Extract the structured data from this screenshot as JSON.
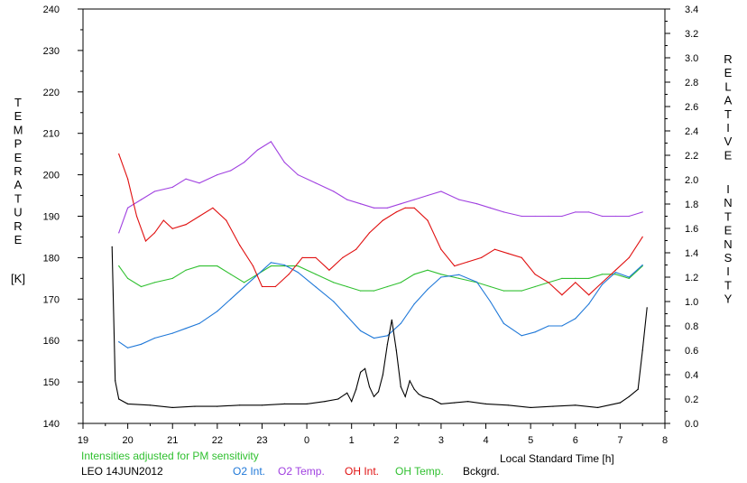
{
  "chart_data": {
    "type": "line",
    "title": "",
    "xlabel": "Local Standard Time [h]",
    "ylabel_left": "TEMPERATURE [K]",
    "ylabel_right": "RELATIVE INTENSITY",
    "xlim": [
      19,
      8
    ],
    "ylim_left": [
      140,
      240
    ],
    "ylim_right": [
      0.0,
      3.4
    ],
    "x_ticks": [
      "19",
      "20",
      "21",
      "22",
      "23",
      "0",
      "1",
      "2",
      "3",
      "4",
      "5",
      "6",
      "7",
      "8"
    ],
    "y_ticks_left": [
      "140",
      "150",
      "160",
      "170",
      "180",
      "190",
      "200",
      "210",
      "220",
      "230",
      "240"
    ],
    "y_ticks_right": [
      "0.0",
      "0.2",
      "0.4",
      "0.6",
      "0.8",
      "1.0",
      "1.2",
      "1.4",
      "1.6",
      "1.8",
      "2.0",
      "2.2",
      "2.4",
      "2.6",
      "2.8",
      "3.0",
      "3.2",
      "3.4"
    ],
    "grid": false,
    "note": "Intensities adjusted for PM sensitivity",
    "station": "LEO 14JUN2012",
    "series": [
      {
        "name": "O2 Int.",
        "color": "#1f78d8",
        "axis": "right",
        "x": [
          19.8,
          20.0,
          20.3,
          20.6,
          21.0,
          21.3,
          21.6,
          22.0,
          22.3,
          22.6,
          22.9,
          23.2,
          23.5,
          23.8,
          24.2,
          24.6,
          24.9,
          25.2,
          25.5,
          25.8,
          26.1,
          26.4,
          26.7,
          27.0,
          27.4,
          27.8,
          28.1,
          28.4,
          28.8,
          29.1,
          29.4,
          29.7,
          30.0,
          30.3,
          30.6,
          30.9,
          31.2,
          31.5
        ],
        "y": [
          0.67,
          0.62,
          0.65,
          0.7,
          0.74,
          0.78,
          0.82,
          0.92,
          1.02,
          1.12,
          1.22,
          1.32,
          1.3,
          1.24,
          1.12,
          1.0,
          0.88,
          0.76,
          0.7,
          0.72,
          0.82,
          0.98,
          1.1,
          1.2,
          1.22,
          1.16,
          1.0,
          0.82,
          0.72,
          0.75,
          0.8,
          0.8,
          0.86,
          0.98,
          1.14,
          1.24,
          1.2,
          1.3
        ]
      },
      {
        "name": "O2 Temp.",
        "color": "#a040e0",
        "axis": "left",
        "x": [
          19.8,
          20.0,
          20.3,
          20.6,
          21.0,
          21.3,
          21.6,
          22.0,
          22.3,
          22.6,
          22.9,
          23.2,
          23.5,
          23.8,
          24.2,
          24.6,
          24.9,
          25.2,
          25.5,
          25.8,
          26.1,
          26.4,
          26.7,
          27.0,
          27.4,
          27.8,
          28.1,
          28.4,
          28.8,
          29.1,
          29.4,
          29.7,
          30.0,
          30.3,
          30.6,
          30.9,
          31.2,
          31.5
        ],
        "y": [
          186,
          192,
          194,
          196,
          197,
          199,
          198,
          200,
          201,
          203,
          206,
          208,
          203,
          200,
          198,
          196,
          194,
          193,
          192,
          192,
          193,
          194,
          195,
          196,
          194,
          193,
          192,
          191,
          190,
          190,
          190,
          190,
          191,
          191,
          190,
          190,
          190,
          191
        ]
      },
      {
        "name": "OH Int.",
        "color": "#e01010",
        "axis": "left",
        "x": [
          19.8,
          20.0,
          20.2,
          20.4,
          20.6,
          20.8,
          21.0,
          21.3,
          21.6,
          21.9,
          22.2,
          22.5,
          22.8,
          23.0,
          23.3,
          23.6,
          23.9,
          24.2,
          24.5,
          24.8,
          25.1,
          25.4,
          25.7,
          26.0,
          26.2,
          26.4,
          26.7,
          27.0,
          27.3,
          27.6,
          27.9,
          28.2,
          28.5,
          28.8,
          29.1,
          29.4,
          29.7,
          30.0,
          30.3,
          30.6,
          30.9,
          31.2,
          31.5
        ],
        "y": [
          205,
          199,
          190,
          184,
          186,
          189,
          187,
          188,
          190,
          192,
          189,
          183,
          178,
          173,
          173,
          176,
          180,
          180,
          177,
          180,
          182,
          186,
          189,
          191,
          192,
          192,
          189,
          182,
          178,
          179,
          180,
          182,
          181,
          180,
          176,
          174,
          171,
          174,
          171,
          174,
          177,
          180,
          185
        ]
      },
      {
        "name": "OH Temp.",
        "color": "#30c030",
        "axis": "left",
        "x": [
          19.8,
          20.0,
          20.3,
          20.6,
          21.0,
          21.3,
          21.6,
          22.0,
          22.3,
          22.6,
          22.9,
          23.2,
          23.5,
          23.8,
          24.2,
          24.6,
          24.9,
          25.2,
          25.5,
          25.8,
          26.1,
          26.4,
          26.7,
          27.0,
          27.4,
          27.8,
          28.1,
          28.4,
          28.8,
          29.1,
          29.4,
          29.7,
          30.0,
          30.3,
          30.6,
          30.9,
          31.2,
          31.5
        ],
        "y": [
          178,
          175,
          173,
          174,
          175,
          177,
          178,
          178,
          176,
          174,
          176,
          178,
          178,
          178,
          176,
          174,
          173,
          172,
          172,
          173,
          174,
          176,
          177,
          176,
          175,
          174,
          173,
          172,
          172,
          173,
          174,
          175,
          175,
          175,
          176,
          176,
          175,
          178
        ]
      },
      {
        "name": "Bckgrd.",
        "color": "#000000",
        "axis": "right",
        "x": [
          19.65,
          19.72,
          19.8,
          20.0,
          20.5,
          21.0,
          21.5,
          22.0,
          22.5,
          23.0,
          23.5,
          24.0,
          24.4,
          24.7,
          24.9,
          25.0,
          25.1,
          25.2,
          25.3,
          25.4,
          25.5,
          25.6,
          25.7,
          25.8,
          25.9,
          26.0,
          26.1,
          26.2,
          26.3,
          26.4,
          26.5,
          26.6,
          26.8,
          27.0,
          27.3,
          27.6,
          28.0,
          28.5,
          29.0,
          29.5,
          30.0,
          30.5,
          31.0,
          31.2,
          31.4,
          31.5,
          31.6
        ],
        "y": [
          1.45,
          0.35,
          0.2,
          0.16,
          0.15,
          0.13,
          0.14,
          0.14,
          0.15,
          0.15,
          0.16,
          0.16,
          0.18,
          0.2,
          0.25,
          0.18,
          0.28,
          0.42,
          0.45,
          0.3,
          0.22,
          0.26,
          0.4,
          0.65,
          0.85,
          0.6,
          0.3,
          0.22,
          0.35,
          0.28,
          0.24,
          0.22,
          0.2,
          0.16,
          0.17,
          0.18,
          0.16,
          0.15,
          0.13,
          0.14,
          0.15,
          0.13,
          0.17,
          0.22,
          0.28,
          0.6,
          0.95
        ]
      }
    ]
  }
}
